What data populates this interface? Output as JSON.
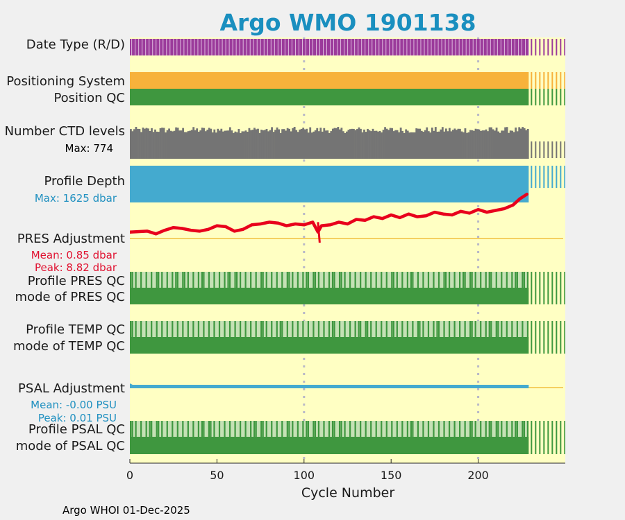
{
  "chart_data": {
    "type": "float-profile-timeline",
    "title": "Argo WMO 1901138",
    "xlabel": "Cycle Number",
    "xlim": [
      0,
      250
    ],
    "xticks": [
      0,
      50,
      100,
      150,
      200
    ],
    "last_cycle": 228,
    "gridlines_x": [
      100,
      200
    ],
    "colors": {
      "panel_bg": "#ffffc3",
      "purple": "#9b3b9b",
      "orange": "#f7b23b",
      "green_dark": "#3f973f",
      "green_light": "#c5e1b5",
      "grey": "#747474",
      "blue": "#44aacf",
      "red": "#e8001c",
      "title": "#1a8fbf",
      "pres_stat": "#e0102f",
      "psal_stat": "#2090c0",
      "ref_line": "#f0c040"
    },
    "rows": {
      "date_type": {
        "label": "Date Type (R/D)"
      },
      "positioning_system": {
        "label": "Positioning System"
      },
      "position_qc": {
        "label": "Position QC"
      },
      "ctd_levels": {
        "label": "Number CTD levels",
        "max_label": "Max: 774",
        "max": 774
      },
      "profile_depth": {
        "label": "Profile Depth",
        "max_label": "Max: 1625 dbar",
        "max": 1625
      },
      "pres_adjustment": {
        "label": "PRES Adjustment",
        "mean_label": "Mean: 0.85 dbar",
        "peak_label": "Peak: 8.82 dbar",
        "series": {
          "name": "PRES adjustment trace (relative)",
          "x": [
            0,
            10,
            15,
            20,
            25,
            30,
            35,
            40,
            45,
            50,
            55,
            60,
            65,
            70,
            75,
            80,
            85,
            90,
            95,
            100,
            105,
            108,
            110,
            115,
            120,
            125,
            130,
            135,
            140,
            145,
            150,
            155,
            160,
            165,
            170,
            175,
            180,
            185,
            190,
            195,
            200,
            205,
            210,
            215,
            220,
            224,
            228
          ],
          "y": [
            0.1,
            0.2,
            -0.1,
            0.3,
            0.6,
            0.5,
            0.3,
            0.2,
            0.4,
            0.8,
            0.7,
            0.2,
            0.4,
            0.9,
            1.0,
            1.2,
            1.1,
            0.8,
            1.0,
            0.9,
            1.2,
            0.1,
            0.8,
            0.9,
            1.2,
            1.0,
            1.5,
            1.4,
            1.8,
            1.6,
            2.0,
            1.7,
            2.1,
            1.8,
            1.9,
            2.3,
            2.1,
            2.0,
            2.4,
            2.2,
            2.6,
            2.3,
            2.5,
            2.7,
            3.1,
            3.8,
            4.3
          ]
        }
      },
      "profile_pres_qc": {
        "label": "Profile PRES QC"
      },
      "mode_pres_qc": {
        "label": "mode of PRES QC"
      },
      "profile_temp_qc": {
        "label": "Profile TEMP QC"
      },
      "mode_temp_qc": {
        "label": "mode of TEMP QC"
      },
      "psal_adjustment": {
        "label": "PSAL Adjustment",
        "mean_label": "Mean: -0.00 PSU",
        "peak_label": "Peak: 0.01 PSU"
      },
      "profile_psal_qc": {
        "label": "Profile PSAL QC"
      },
      "mode_psal_qc": {
        "label": "mode of PSAL QC"
      }
    },
    "footer": "Argo WHOI 01-Dec-2025"
  }
}
